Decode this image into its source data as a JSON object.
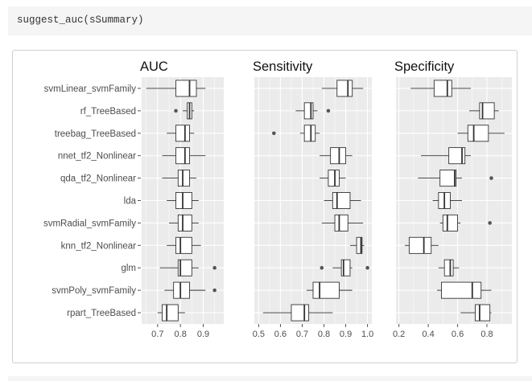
{
  "code": {
    "text": "suggest_auc(sSummary)"
  },
  "chart_data": {
    "type": "boxplot",
    "categories": [
      "svmLinear_svmFamily",
      "rf_TreeBased",
      "treebag_TreeBased",
      "nnet_tf2_Nonlinear",
      "qda_tf2_Nonlinear",
      "lda",
      "svmRadial_svmFamily",
      "knn_tf2_Nonlinear",
      "glm",
      "svmPoly_svmFamily",
      "rpart_TreeBased"
    ],
    "panels": [
      {
        "title": "AUC",
        "xlim": [
          0.63,
          0.99
        ],
        "ticks": [
          "0.7",
          "0.8",
          "0.9"
        ],
        "tick_values": [
          0.7,
          0.8,
          0.9
        ],
        "boxes": [
          {
            "whisker_lo": 0.65,
            "q1": 0.78,
            "median": 0.84,
            "q3": 0.87,
            "whisker_hi": 0.91,
            "outliers": []
          },
          {
            "whisker_lo": 0.81,
            "q1": 0.83,
            "median": 0.84,
            "q3": 0.85,
            "whisker_hi": 0.86,
            "outliers": [
              0.78
            ]
          },
          {
            "whisker_lo": 0.74,
            "q1": 0.78,
            "median": 0.82,
            "q3": 0.84,
            "whisker_hi": 0.86,
            "outliers": []
          },
          {
            "whisker_lo": 0.72,
            "q1": 0.78,
            "median": 0.82,
            "q3": 0.84,
            "whisker_hi": 0.91,
            "outliers": []
          },
          {
            "whisker_lo": 0.72,
            "q1": 0.79,
            "median": 0.81,
            "q3": 0.84,
            "whisker_hi": 0.87,
            "outliers": []
          },
          {
            "whisker_lo": 0.74,
            "q1": 0.78,
            "median": 0.81,
            "q3": 0.85,
            "whisker_hi": 0.88,
            "outliers": []
          },
          {
            "whisker_lo": 0.75,
            "q1": 0.79,
            "median": 0.81,
            "q3": 0.85,
            "whisker_hi": 0.88,
            "outliers": []
          },
          {
            "whisker_lo": 0.74,
            "q1": 0.78,
            "median": 0.8,
            "q3": 0.85,
            "whisker_hi": 0.89,
            "outliers": []
          },
          {
            "whisker_lo": 0.71,
            "q1": 0.79,
            "median": 0.8,
            "q3": 0.85,
            "whisker_hi": 0.88,
            "outliers": [
              0.95
            ]
          },
          {
            "whisker_lo": 0.73,
            "q1": 0.77,
            "median": 0.8,
            "q3": 0.84,
            "whisker_hi": 0.91,
            "outliers": [
              0.95
            ]
          },
          {
            "whisker_lo": 0.7,
            "q1": 0.72,
            "median": 0.74,
            "q3": 0.79,
            "whisker_hi": 0.82,
            "outliers": []
          }
        ]
      },
      {
        "title": "Sensitivity",
        "xlim": [
          0.48,
          1.02
        ],
        "ticks": [
          "0.5",
          "0.6",
          "0.7",
          "0.8",
          "0.9",
          "1.0"
        ],
        "tick_values": [
          0.5,
          0.6,
          0.7,
          0.8,
          0.9,
          1.0
        ],
        "boxes": [
          {
            "whisker_lo": 0.79,
            "q1": 0.86,
            "median": 0.91,
            "q3": 0.93,
            "whisker_hi": 0.98,
            "outliers": []
          },
          {
            "whisker_lo": 0.67,
            "q1": 0.71,
            "median": 0.74,
            "q3": 0.75,
            "whisker_hi": 0.77,
            "outliers": [
              0.82
            ]
          },
          {
            "whisker_lo": 0.69,
            "q1": 0.71,
            "median": 0.74,
            "q3": 0.76,
            "whisker_hi": 0.78,
            "outliers": [
              0.57
            ]
          },
          {
            "whisker_lo": 0.78,
            "q1": 0.83,
            "median": 0.87,
            "q3": 0.9,
            "whisker_hi": 0.93,
            "outliers": []
          },
          {
            "whisker_lo": 0.78,
            "q1": 0.82,
            "median": 0.85,
            "q3": 0.87,
            "whisker_hi": 0.9,
            "outliers": []
          },
          {
            "whisker_lo": 0.8,
            "q1": 0.84,
            "median": 0.86,
            "q3": 0.92,
            "whisker_hi": 0.97,
            "outliers": []
          },
          {
            "whisker_lo": 0.79,
            "q1": 0.85,
            "median": 0.87,
            "q3": 0.91,
            "whisker_hi": 0.98,
            "outliers": []
          },
          {
            "whisker_lo": 0.92,
            "q1": 0.95,
            "median": 0.97,
            "q3": 0.975,
            "whisker_hi": 0.985,
            "outliers": []
          },
          {
            "whisker_lo": 0.84,
            "q1": 0.88,
            "median": 0.89,
            "q3": 0.92,
            "whisker_hi": 0.93,
            "outliers": [
              0.79,
              1.0
            ]
          },
          {
            "whisker_lo": 0.72,
            "q1": 0.75,
            "median": 0.78,
            "q3": 0.87,
            "whisker_hi": 0.93,
            "outliers": []
          },
          {
            "whisker_lo": 0.52,
            "q1": 0.65,
            "median": 0.71,
            "q3": 0.73,
            "whisker_hi": 0.84,
            "outliers": []
          }
        ]
      },
      {
        "title": "Specificity",
        "xlim": [
          0.18,
          0.97
        ],
        "ticks": [
          "0.2",
          "0.4",
          "0.6",
          "0.8"
        ],
        "tick_values": [
          0.2,
          0.4,
          0.6,
          0.8
        ],
        "boxes": [
          {
            "whisker_lo": 0.28,
            "q1": 0.44,
            "median": 0.53,
            "q3": 0.56,
            "whisker_hi": 0.69,
            "outliers": []
          },
          {
            "whisker_lo": 0.68,
            "q1": 0.75,
            "median": 0.77,
            "q3": 0.85,
            "whisker_hi": 0.88,
            "outliers": []
          },
          {
            "whisker_lo": 0.6,
            "q1": 0.67,
            "median": 0.71,
            "q3": 0.81,
            "whisker_hi": 0.92,
            "outliers": []
          },
          {
            "whisker_lo": 0.35,
            "q1": 0.54,
            "median": 0.63,
            "q3": 0.65,
            "whisker_hi": 0.69,
            "outliers": []
          },
          {
            "whisker_lo": 0.33,
            "q1": 0.48,
            "median": 0.58,
            "q3": 0.59,
            "whisker_hi": 0.63,
            "outliers": [
              0.83
            ]
          },
          {
            "whisker_lo": 0.43,
            "q1": 0.47,
            "median": 0.51,
            "q3": 0.55,
            "whisker_hi": 0.63,
            "outliers": []
          },
          {
            "whisker_lo": 0.48,
            "q1": 0.5,
            "median": 0.53,
            "q3": 0.6,
            "whisker_hi": 0.62,
            "outliers": [
              0.82
            ]
          },
          {
            "whisker_lo": 0.24,
            "q1": 0.27,
            "median": 0.37,
            "q3": 0.42,
            "whisker_hi": 0.47,
            "outliers": []
          },
          {
            "whisker_lo": 0.47,
            "q1": 0.51,
            "median": 0.55,
            "q3": 0.57,
            "whisker_hi": 0.61,
            "outliers": []
          },
          {
            "whisker_lo": 0.46,
            "q1": 0.49,
            "median": 0.7,
            "q3": 0.76,
            "whisker_hi": 0.83,
            "outliers": []
          },
          {
            "whisker_lo": 0.62,
            "q1": 0.72,
            "median": 0.75,
            "q3": 0.82,
            "whisker_hi": 0.83,
            "outliers": []
          }
        ]
      }
    ]
  },
  "colors": {
    "panel_bg": "#ebebeb",
    "grid": "#ffffff",
    "box_fill": "#ffffff",
    "stroke": "#333333",
    "outlier": "#555555",
    "axis_text": "#4d4d4d"
  }
}
